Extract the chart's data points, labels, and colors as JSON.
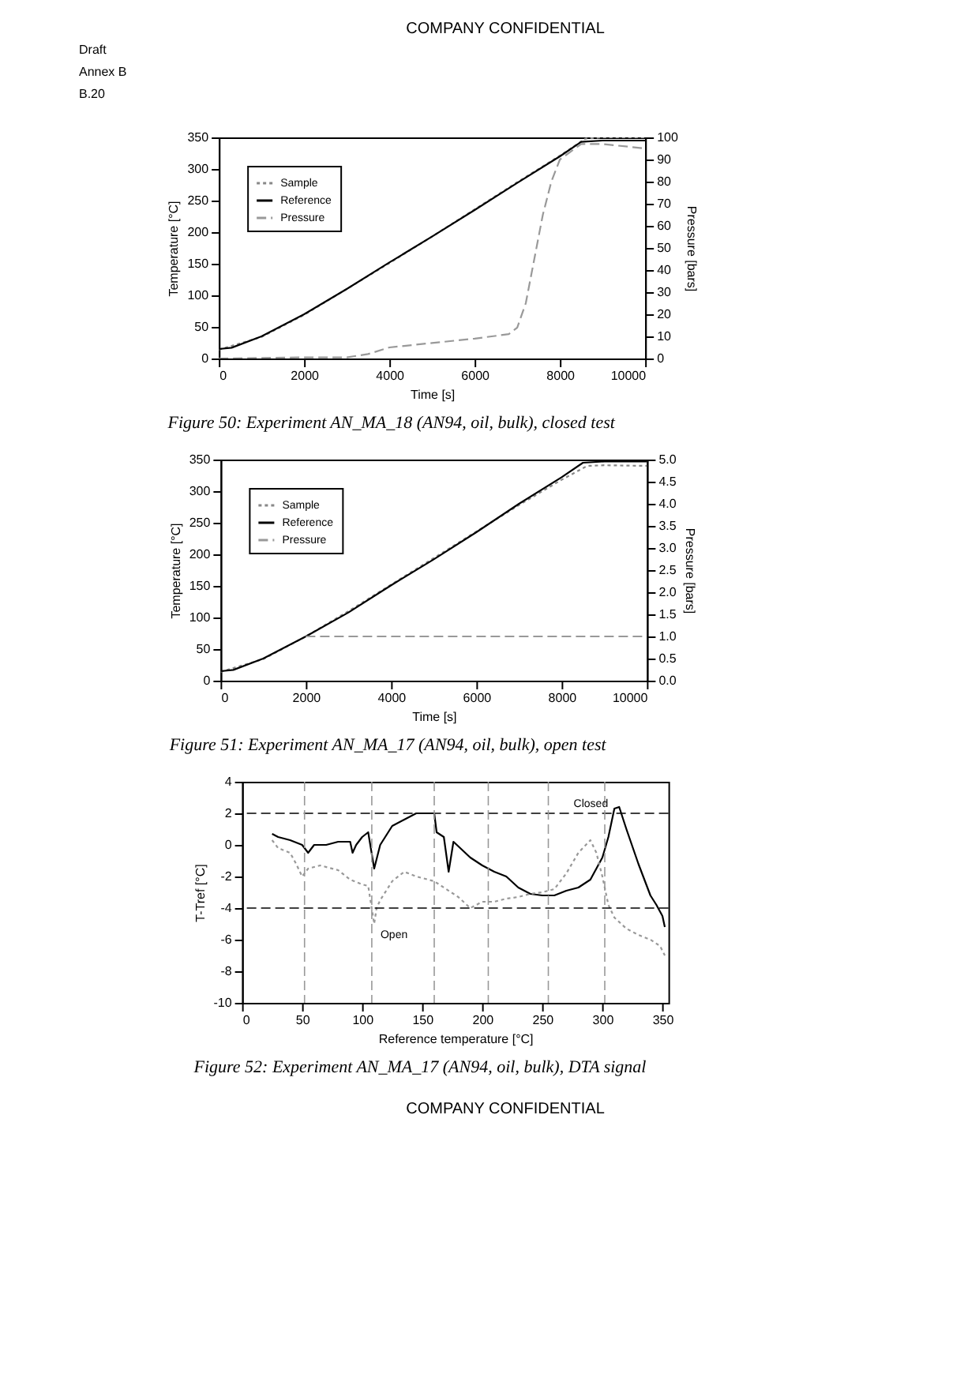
{
  "chart_data": [
    {
      "type": "line",
      "title": "Figure 50:    Experiment AN_MA_18 (AN94, oil, bulk), closed test",
      "xlabel": "Time [s]",
      "ylabel": "Temperature [°C]",
      "y2label": "Pressure [bars]",
      "annotations": [
        "COMPANY CONFIDENTIAL",
        "Draft",
        "Annex B",
        "B.20"
      ],
      "xlim": [
        0,
        10000
      ],
      "xticks": [
        0,
        2000,
        4000,
        6000,
        8000,
        10000
      ],
      "ylim": [
        0,
        350
      ],
      "yticks": [
        0,
        50,
        100,
        150,
        200,
        250,
        300,
        350
      ],
      "y2lim": [
        0,
        100
      ],
      "y2ticks": [
        0,
        10,
        20,
        30,
        40,
        50,
        60,
        70,
        80,
        90,
        100
      ],
      "legend": "top left",
      "series": [
        {
          "name": "Sample",
          "color": "#888888",
          "line_style": "dotted",
          "x": [
            0,
            1000,
            2000,
            3000,
            4000,
            5000,
            6000,
            7000,
            8000,
            8600,
            9000,
            10000
          ],
          "values": [
            14,
            34,
            69,
            110,
            151,
            193,
            236,
            279,
            321,
            348,
            350,
            350
          ]
        },
        {
          "name": "Reference",
          "color": "#000000",
          "line_style": "solid",
          "x": [
            0,
            300,
            1000,
            2000,
            3000,
            4000,
            5000,
            6000,
            7000,
            8000,
            8500,
            9000,
            10000
          ],
          "values": [
            15,
            17,
            35,
            70,
            110,
            152,
            193,
            235,
            278,
            320,
            343,
            345,
            345
          ]
        },
        {
          "name": "Pressure",
          "color": "#999999",
          "line_style": "dashed",
          "axis": "y2",
          "x": [
            0,
            2000,
            3000,
            3500,
            4000,
            5000,
            6000,
            6800,
            7000,
            7200,
            7400,
            7600,
            7800,
            8000,
            8500,
            9000,
            10000
          ],
          "values": [
            0,
            0.5,
            0.5,
            2,
            5,
            7,
            9,
            11,
            14,
            25,
            45,
            65,
            80,
            90,
            97,
            97,
            95
          ]
        }
      ]
    },
    {
      "type": "line",
      "title": "Figure 51:    Experiment AN_MA_17 (AN94, oil, bulk), open test",
      "xlabel": "Time [s]",
      "ylabel": "Temperature [°C]",
      "y2label": "Pressure [bars]",
      "xlim": [
        0,
        10000
      ],
      "xticks": [
        0,
        2000,
        4000,
        6000,
        8000,
        10000
      ],
      "ylim": [
        0,
        350
      ],
      "yticks": [
        0,
        50,
        100,
        150,
        200,
        250,
        300,
        350
      ],
      "y2lim": [
        0,
        5
      ],
      "y2ticks": [
        {
          "value": 0,
          "label": "0.0"
        },
        0.5,
        {
          "value": 1,
          "label": "1.0"
        },
        1.5,
        {
          "value": 2,
          "label": "2.0"
        },
        2.5,
        {
          "value": 3,
          "label": "3.0"
        },
        3.5,
        {
          "value": 4,
          "label": "4.0"
        },
        4.5,
        {
          "value": 5,
          "label": "5.0"
        }
      ],
      "legend": "top left",
      "series": [
        {
          "name": "Sample",
          "color": "#888888",
          "line_style": "dotted",
          "x": [
            0,
            1000,
            2000,
            3000,
            4000,
            5000,
            6000,
            7000,
            8000,
            8600,
            9000,
            10000
          ],
          "values": [
            14,
            34,
            70,
            110,
            152,
            194,
            236,
            278,
            318,
            340,
            341,
            340
          ]
        },
        {
          "name": "Reference",
          "color": "#000000",
          "line_style": "solid",
          "x": [
            0,
            300,
            1000,
            2000,
            3000,
            4000,
            5000,
            6000,
            7000,
            8000,
            8500,
            9000,
            10000
          ],
          "values": [
            15,
            17,
            35,
            70,
            108,
            151,
            192,
            235,
            280,
            322,
            345,
            347,
            347
          ]
        },
        {
          "name": "Pressure",
          "color": "#999999",
          "line_style": "dashed",
          "axis": "y2",
          "x": [
            2000,
            3000,
            4000,
            5000,
            6000,
            7000,
            8000,
            9000,
            10000
          ],
          "values": [
            1.0,
            1.0,
            1.0,
            1.0,
            1.0,
            1.0,
            1.0,
            1.0,
            1.0
          ]
        }
      ]
    },
    {
      "type": "line",
      "title": "Figure 52:    Experiment AN_MA_17 (AN94, oil, bulk), DTA signal",
      "xlabel": "Reference temperature [°C]",
      "ylabel": "T-Tref [°C]",
      "annotations": [
        {
          "text": "Closed",
          "x": 310,
          "y": 2.3
        },
        {
          "text": "Open",
          "x": 110,
          "y": -5
        },
        "COMPANY CONFIDENTIAL"
      ],
      "xlim": [
        0,
        355
      ],
      "xticks": [
        0,
        50,
        100,
        150,
        200,
        250,
        300,
        350
      ],
      "ylim": [
        -10,
        4
      ],
      "yticks": [
        -10,
        -8,
        -6,
        -4,
        -2,
        0,
        2,
        4
      ],
      "ref_lines": [
        {
          "axis": "y",
          "value": 2,
          "color": "#000000",
          "line_style": "dashed"
        },
        {
          "axis": "y",
          "value": -4,
          "color": "#000000",
          "line_style": "dashed"
        },
        {
          "axis": "x",
          "value": 52,
          "color": "#999999",
          "line_style": "dashed"
        },
        {
          "axis": "x",
          "value": 108,
          "color": "#999999",
          "line_style": "dashed"
        },
        {
          "axis": "x",
          "value": 160,
          "color": "#999999",
          "line_style": "dashed"
        },
        {
          "axis": "x",
          "value": 205,
          "color": "#999999",
          "line_style": "dashed"
        },
        {
          "axis": "x",
          "value": 255,
          "color": "#999999",
          "line_style": "dashed"
        },
        {
          "axis": "x",
          "value": 302,
          "color": "#999999",
          "line_style": "dashed"
        }
      ],
      "series": [
        {
          "color": "#000000",
          "line_style": "solid",
          "x": [
            25,
            30,
            40,
            50,
            55,
            60,
            70,
            80,
            90,
            92,
            95,
            100,
            105,
            110,
            115,
            125,
            135,
            145,
            150,
            160,
            162,
            168,
            172,
            176,
            190,
            200,
            210,
            220,
            230,
            240,
            250,
            260,
            270,
            280,
            290,
            300,
            305,
            310,
            314,
            320,
            330,
            340,
            345,
            350,
            352
          ],
          "values": [
            0.7,
            0.5,
            0.3,
            0,
            -0.5,
            0,
            0,
            0.2,
            0.2,
            -0.5,
            0,
            0.5,
            0.8,
            -1.5,
            0,
            1.2,
            1.6,
            2.0,
            2.0,
            2.0,
            0.8,
            0.5,
            -1.7,
            0.2,
            -0.8,
            -1.3,
            -1.7,
            -2.0,
            -2.7,
            -3.1,
            -3.2,
            -3.2,
            -2.9,
            -2.7,
            -2.2,
            -0.8,
            0.5,
            2.3,
            2.4,
            1.0,
            -1.2,
            -3.2,
            -3.8,
            -4.5,
            -5.2
          ]
        },
        {
          "color": "#999999",
          "line_style": "dotted",
          "x": [
            25,
            30,
            40,
            45,
            50,
            55,
            65,
            80,
            90,
            100,
            105,
            110,
            112,
            115,
            125,
            135,
            145,
            160,
            170,
            180,
            190,
            200,
            210,
            220,
            230,
            240,
            250,
            260,
            270,
            280,
            290,
            295,
            300,
            305,
            310,
            320,
            330,
            340,
            348,
            352
          ],
          "values": [
            0.3,
            -0.2,
            -0.5,
            -1.2,
            -2,
            -1.5,
            -1.3,
            -1.6,
            -2.2,
            -2.5,
            -2.6,
            -5,
            -4,
            -3.5,
            -2.3,
            -1.7,
            -2.0,
            -2.3,
            -2.8,
            -3.3,
            -4.0,
            -3.6,
            -3.6,
            -3.4,
            -3.3,
            -3.1,
            -3.0,
            -2.8,
            -1.8,
            -0.5,
            0.3,
            -0.5,
            -2,
            -3.8,
            -4.6,
            -5.3,
            -5.7,
            -6,
            -6.4,
            -7
          ]
        }
      ]
    }
  ]
}
